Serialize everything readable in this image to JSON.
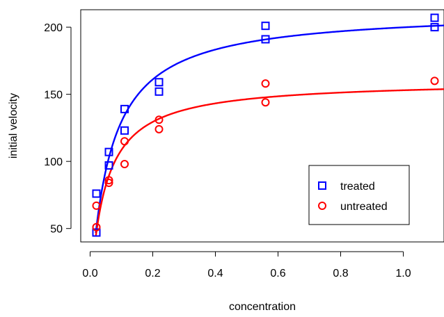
{
  "chart_data": {
    "type": "scatter",
    "xlabel": "concentration",
    "ylabel": "initial velocity",
    "xlim": [
      -0.03,
      1.13
    ],
    "ylim": [
      40,
      213
    ],
    "x_ticks": [
      0.0,
      0.2,
      0.4,
      0.6,
      0.8,
      1.0
    ],
    "x_tick_labels": [
      "0.0",
      "0.2",
      "0.4",
      "0.6",
      "0.8",
      "1.0"
    ],
    "y_ticks": [
      50,
      100,
      150,
      200
    ],
    "y_tick_labels": [
      "50",
      "100",
      "150",
      "200"
    ],
    "grid": false,
    "legend_position": "right",
    "series": [
      {
        "name": "treated",
        "color": "#0000ff",
        "marker": "square",
        "points": [
          [
            0.02,
            76
          ],
          [
            0.02,
            47
          ],
          [
            0.06,
            97
          ],
          [
            0.06,
            107
          ],
          [
            0.11,
            123
          ],
          [
            0.11,
            139
          ],
          [
            0.22,
            159
          ],
          [
            0.22,
            152
          ],
          [
            0.56,
            191
          ],
          [
            0.56,
            201
          ],
          [
            1.1,
            207
          ],
          [
            1.1,
            200
          ]
        ],
        "fit": {
          "model": "michaelis-menten",
          "Vmax": 212.7,
          "Km": 0.0641
        }
      },
      {
        "name": "untreated",
        "color": "#ff0000",
        "marker": "circle",
        "points": [
          [
            0.02,
            67
          ],
          [
            0.02,
            51
          ],
          [
            0.06,
            84
          ],
          [
            0.06,
            86
          ],
          [
            0.11,
            98
          ],
          [
            0.11,
            115
          ],
          [
            0.22,
            131
          ],
          [
            0.22,
            124
          ],
          [
            0.56,
            144
          ],
          [
            0.56,
            158
          ],
          [
            1.1,
            160
          ]
        ],
        "fit": {
          "model": "michaelis-menten",
          "Vmax": 160.3,
          "Km": 0.0477
        }
      }
    ]
  }
}
